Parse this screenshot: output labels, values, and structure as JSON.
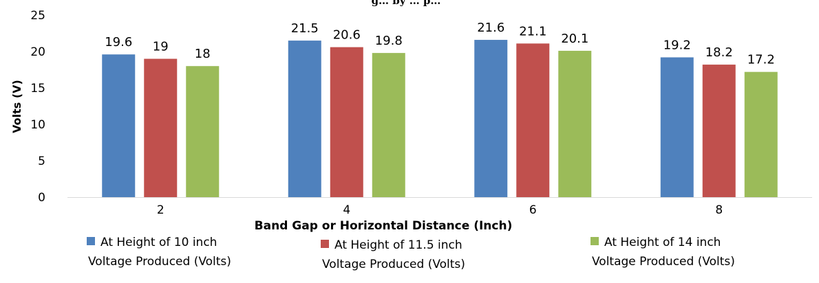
{
  "chart_data": {
    "type": "bar",
    "title": "g… by … p…",
    "xlabel": "Band Gap  or Horizontal  Distance (Inch)",
    "ylabel": "Volts (V)",
    "categories": [
      "2",
      "4",
      "6",
      "8"
    ],
    "ylim": [
      0,
      25
    ],
    "yticks": [
      "0",
      "5",
      "10",
      "15",
      "20",
      "25"
    ],
    "grid": false,
    "legend_position": "bottom",
    "series": [
      {
        "name": "At Height of 10 inch Voltage Produced (Volts)",
        "name_lines": [
          "At Height of 10 inch",
          "Voltage Produced (Volts)"
        ],
        "color": "#4F81BD",
        "values": [
          19.6,
          21.5,
          21.6,
          19.2
        ],
        "labels": [
          "19.6",
          "21.5",
          "21.6",
          "19.2"
        ]
      },
      {
        "name": "At Height of 11.5 inch Voltage Produced (Volts)",
        "name_lines": [
          "At Height of 11.5 inch",
          "Voltage Produced (Volts)"
        ],
        "color": "#C0504D",
        "values": [
          19,
          20.6,
          21.1,
          18.2
        ],
        "labels": [
          "19",
          "20.6",
          "21.1",
          "18.2"
        ]
      },
      {
        "name": "At Height of 14 inch Voltage Produced (Volts)",
        "name_lines": [
          "At Height of 14 inch",
          "Voltage Produced (Volts)"
        ],
        "color": "#9BBB59",
        "values": [
          18,
          19.8,
          20.1,
          17.2
        ],
        "labels": [
          "18",
          "19.8",
          "20.1",
          "17.2"
        ]
      }
    ]
  }
}
